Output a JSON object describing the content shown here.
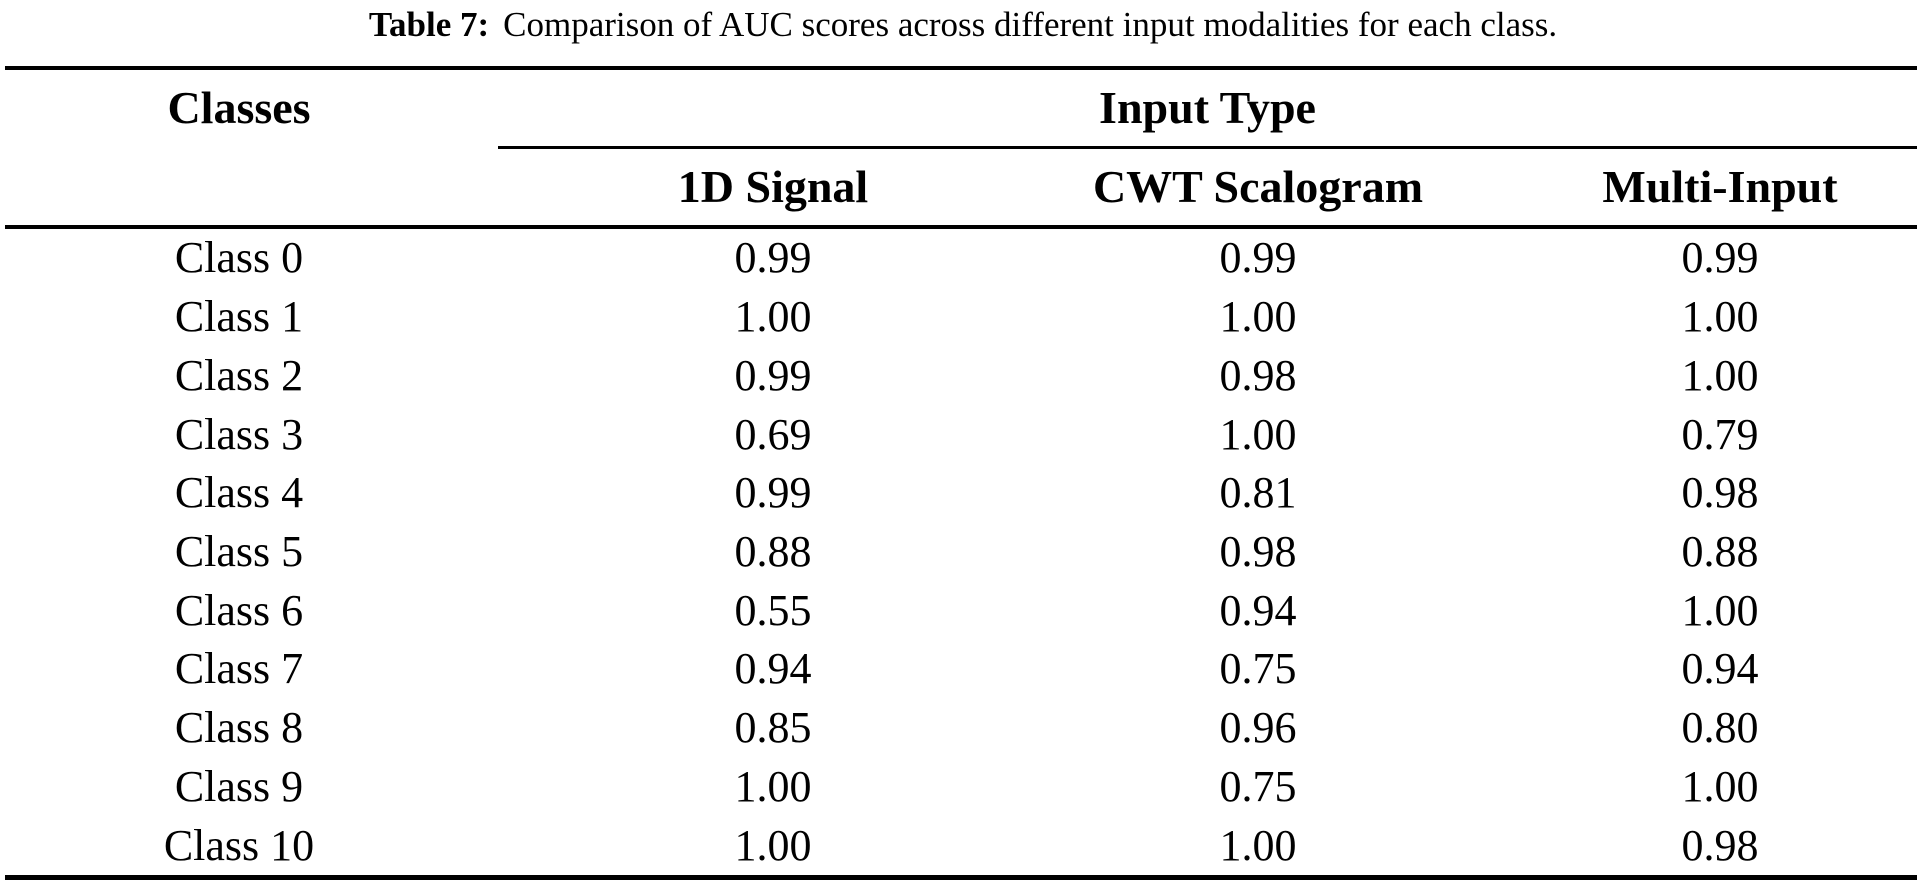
{
  "page": {
    "background_color": "#ffffff",
    "text_color": "#000000",
    "rule_color": "#000000"
  },
  "caption": {
    "label": "Table 7:",
    "text": "Comparison of AUC scores across different input modalities for each class."
  },
  "table": {
    "corner_header": "Classes",
    "group_header": "Input Type",
    "column_headers": [
      "1D Signal",
      "CWT Scalogram",
      "Multi-Input"
    ],
    "rows": [
      {
        "label": "Class 0",
        "values": [
          "0.99",
          "0.99",
          "0.99"
        ]
      },
      {
        "label": "Class 1",
        "values": [
          "1.00",
          "1.00",
          "1.00"
        ]
      },
      {
        "label": "Class 2",
        "values": [
          "0.99",
          "0.98",
          "1.00"
        ]
      },
      {
        "label": "Class 3",
        "values": [
          "0.69",
          "1.00",
          "0.79"
        ]
      },
      {
        "label": "Class 4",
        "values": [
          "0.99",
          "0.81",
          "0.98"
        ]
      },
      {
        "label": "Class 5",
        "values": [
          "0.88",
          "0.98",
          "0.88"
        ]
      },
      {
        "label": "Class 6",
        "values": [
          "0.55",
          "0.94",
          "1.00"
        ]
      },
      {
        "label": "Class 7",
        "values": [
          "0.94",
          "0.75",
          "0.94"
        ]
      },
      {
        "label": "Class 8",
        "values": [
          "0.85",
          "0.96",
          "0.80"
        ]
      },
      {
        "label": "Class 9",
        "values": [
          "1.00",
          "0.75",
          "1.00"
        ]
      },
      {
        "label": "Class 10",
        "values": [
          "1.00",
          "1.00",
          "0.98"
        ]
      }
    ]
  },
  "chart_data": {
    "type": "table",
    "title": "Table 7: Comparison of AUC scores across different input modalities for each class.",
    "categories": [
      "Class 0",
      "Class 1",
      "Class 2",
      "Class 3",
      "Class 4",
      "Class 5",
      "Class 6",
      "Class 7",
      "Class 8",
      "Class 9",
      "Class 10"
    ],
    "series": [
      {
        "name": "1D Signal",
        "values": [
          0.99,
          1.0,
          0.99,
          0.69,
          0.99,
          0.88,
          0.55,
          0.94,
          0.85,
          1.0,
          1.0
        ]
      },
      {
        "name": "CWT Scalogram",
        "values": [
          0.99,
          1.0,
          0.98,
          1.0,
          0.81,
          0.98,
          0.94,
          0.75,
          0.96,
          0.75,
          1.0
        ]
      },
      {
        "name": "Multi-Input",
        "values": [
          0.99,
          1.0,
          1.0,
          0.79,
          0.98,
          0.88,
          1.0,
          0.94,
          0.8,
          1.0,
          0.98
        ]
      }
    ]
  }
}
